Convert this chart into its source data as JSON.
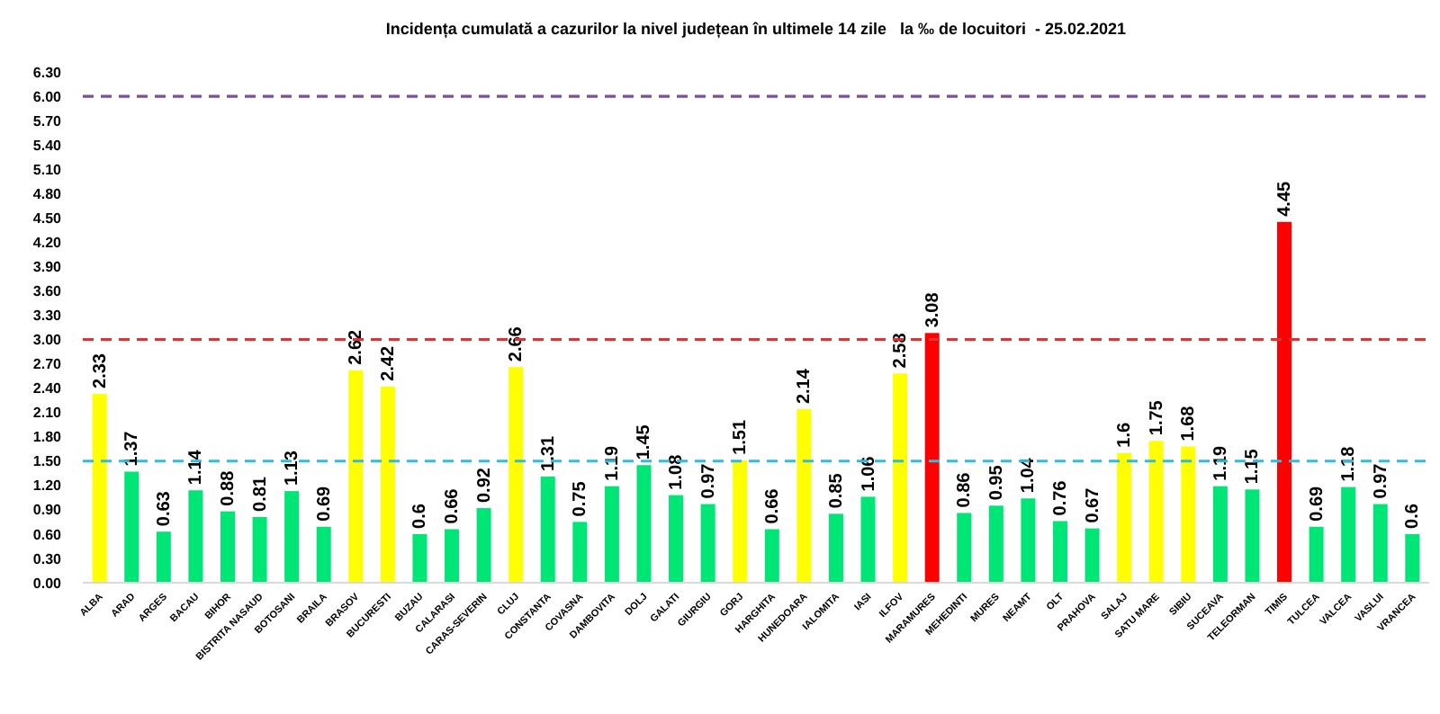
{
  "chart_data": {
    "type": "bar",
    "title": "Incidența cumulată a cazurilor la nivel județean în ultimele 14 zile   la ‰ de locuitori  - 25.02.2021",
    "categories": [
      "ALBA",
      "ARAD",
      "ARGES",
      "BACAU",
      "BIHOR",
      "BISTRITA NASAUD",
      "BOTOSANI",
      "BRAILA",
      "BRASOV",
      "BUCURESTI",
      "BUZAU",
      "CALARASI",
      "CARAS-SEVERIN",
      "CLUJ",
      "CONSTANTA",
      "COVASNA",
      "DAMBOVITA",
      "DOLJ",
      "GALATI",
      "GIURGIU",
      "GORJ",
      "HARGHITA",
      "HUNEDOARA",
      "IALOMITA",
      "IASI",
      "ILFOV",
      "MARAMURES",
      "MEHEDINTI",
      "MURES",
      "NEAMT",
      "OLT",
      "PRAHOVA",
      "SALAJ",
      "SATU MARE",
      "SIBIU",
      "SUCEAVA",
      "TELEORMAN",
      "TIMIS",
      "TULCEA",
      "VALCEA",
      "VASLUI",
      "VRANCEA"
    ],
    "values": [
      2.33,
      1.37,
      0.63,
      1.14,
      0.88,
      0.81,
      1.13,
      0.69,
      2.62,
      2.42,
      0.6,
      0.66,
      0.92,
      2.66,
      1.31,
      0.75,
      1.19,
      1.45,
      1.08,
      0.97,
      1.51,
      0.66,
      2.14,
      0.85,
      1.06,
      2.58,
      3.08,
      0.86,
      0.95,
      1.04,
      0.76,
      0.67,
      1.6,
      1.75,
      1.68,
      1.19,
      1.15,
      4.45,
      0.69,
      1.18,
      0.97,
      0.6
    ],
    "colors": [
      "#ffff00",
      "#00e676",
      "#00e676",
      "#00e676",
      "#00e676",
      "#00e676",
      "#00e676",
      "#00e676",
      "#ffff00",
      "#ffff00",
      "#00e676",
      "#00e676",
      "#00e676",
      "#ffff00",
      "#00e676",
      "#00e676",
      "#00e676",
      "#00e676",
      "#00e676",
      "#00e676",
      "#ffff00",
      "#00e676",
      "#ffff00",
      "#00e676",
      "#00e676",
      "#ffff00",
      "#ff0000",
      "#00e676",
      "#00e676",
      "#00e676",
      "#00e676",
      "#00e676",
      "#ffff00",
      "#ffff00",
      "#ffff00",
      "#00e676",
      "#00e676",
      "#ff0000",
      "#00e676",
      "#00e676",
      "#00e676",
      "#00e676"
    ],
    "ylim": [
      0,
      6.3
    ],
    "yticks": [
      {
        "value": 0,
        "label": "0.00"
      },
      {
        "value": 0.3,
        "label": "0.30"
      },
      {
        "value": 0.6,
        "label": "0.60"
      },
      {
        "value": 0.9,
        "label": "0.90"
      },
      {
        "value": 1.2,
        "label": "1.20"
      },
      {
        "value": 1.5,
        "label": "1.50"
      },
      {
        "value": 1.8,
        "label": "1.80"
      },
      {
        "value": 2.1,
        "label": "2.10"
      },
      {
        "value": 2.4,
        "label": "2.40"
      },
      {
        "value": 2.7,
        "label": "2.70"
      },
      {
        "value": 3,
        "label": "3.00"
      },
      {
        "value": 3.3,
        "label": "3.30"
      },
      {
        "value": 3.6,
        "label": "3.60"
      },
      {
        "value": 3.9,
        "label": "3.90"
      },
      {
        "value": 4.2,
        "label": "4.20"
      },
      {
        "value": 4.5,
        "label": "4.50"
      },
      {
        "value": 4.8,
        "label": "4.80"
      },
      {
        "value": 5.1,
        "label": "5.10"
      },
      {
        "value": 5.4,
        "label": "5.40"
      },
      {
        "value": 5.7,
        "label": "5.70"
      },
      {
        "value": 6,
        "label": "6.00"
      },
      {
        "value": 6.3,
        "label": "6.30"
      }
    ],
    "ref_lines": [
      {
        "axis": "y",
        "value": 1.5,
        "color": "#33bbdd",
        "line_style": "dashed"
      },
      {
        "axis": "y",
        "value": 3,
        "color": "#dd3333",
        "line_style": "dashed"
      },
      {
        "axis": "y",
        "value": 6,
        "color": "#7a4fa0",
        "line_style": "dashed"
      }
    ],
    "data_labels": true,
    "grid": false
  }
}
